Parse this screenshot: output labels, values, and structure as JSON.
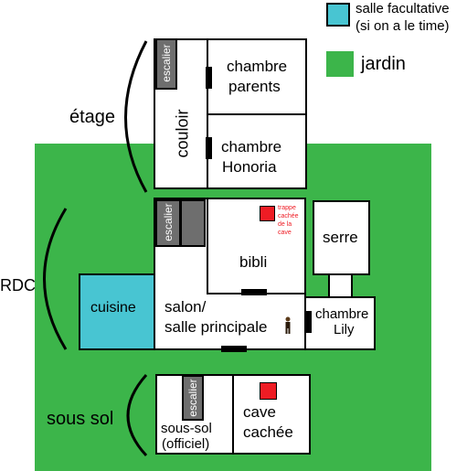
{
  "colors": {
    "jardin": "#3cb54a",
    "salle_facultative": "#48c5d2",
    "escalier": "#6e6e6e",
    "secret": "#ee1c24"
  },
  "legend": {
    "salle_facultative_line1": "salle facultative",
    "salle_facultative_line2": "(si on a le time)",
    "jardin": "jardin"
  },
  "floors": {
    "etage": "étage",
    "rdc": "RDC",
    "sous_sol": "sous sol"
  },
  "rooms": {
    "escalier": "escalier",
    "couloir": "couloir",
    "chambre_parents_1": "chambre",
    "chambre_parents_2": "parents",
    "chambre_honoria_1": "chambre",
    "chambre_honoria_2": "Honoria",
    "bibli": "bibli",
    "trappe_1": "trappe",
    "trappe_2": "cachée",
    "trappe_3": "de la",
    "trappe_4": "cave",
    "serre": "serre",
    "cuisine": "cuisine",
    "salon_1": "salon/",
    "salon_2": "salle principale",
    "chambre_lily_1": "chambre",
    "chambre_lily_2": "Lily",
    "sous_sol_officiel_1": "sous-sol",
    "sous_sol_officiel_2": "(officiel)",
    "cave_1": "cave",
    "cave_2": "cachée"
  },
  "icons": {
    "person": "person-icon",
    "secret_marker": "red-square-icon"
  }
}
